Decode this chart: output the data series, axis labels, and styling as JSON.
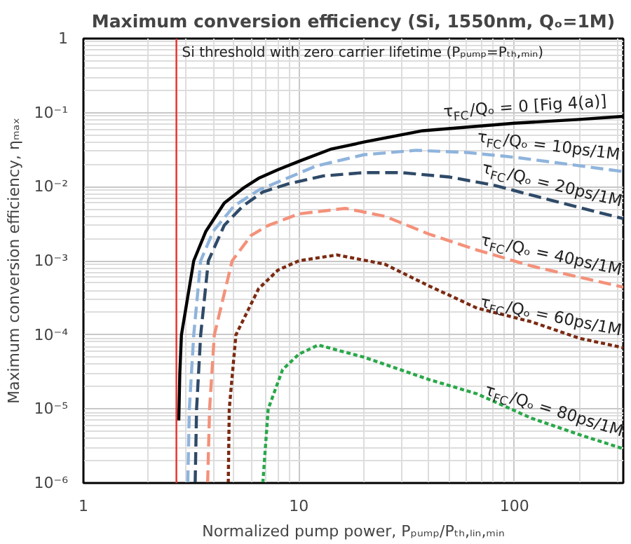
{
  "chart_data": {
    "type": "line",
    "title": "Maximum conversion efficiency (Si, 1550nm, Qₒ=1M)",
    "xlabel": "Normalized pump power, Pₚᵤₘₚ/Pₜₕ,ₗᵢₙ,ₘᵢₙ",
    "ylabel": "Maximum conversion efficiency, ηₘₐₓ",
    "log": "xy",
    "grid": true,
    "legend": false,
    "xlim": [
      1,
      320
    ],
    "xticks": [
      1,
      10,
      100
    ],
    "ylim": [
      1e-06,
      1
    ],
    "yticks": [
      {
        "value": 1e-06,
        "label": "10⁻⁶"
      },
      {
        "value": 1e-05,
        "label": "10⁻⁵"
      },
      {
        "value": 0.0001,
        "label": "10⁻⁴"
      },
      {
        "value": 0.001,
        "label": "10⁻³"
      },
      {
        "value": 0.01,
        "label": "10⁻²"
      },
      {
        "value": 0.1,
        "label": "10⁻¹"
      },
      1
    ],
    "ref_lines": [
      {
        "axis": "x",
        "value": 2.7,
        "label": "Si threshold with zero carrier lifetime (Pₚᵤₘₚ=Pₜₕ,ₘᵢₙ)",
        "color": "#e8302a"
      }
    ],
    "series": [
      {
        "name": "τ$_{FC}$/Qₒ = 0 [Fig 4(a)]",
        "color": "#000000",
        "line_style": "solid",
        "x": [
          2.77,
          2.8,
          2.85,
          3.25,
          3.7,
          4.5,
          5.5,
          6.5,
          8,
          10,
          14,
          20,
          37.6,
          100,
          200,
          320
        ],
        "values": [
          7e-06,
          3e-05,
          0.0001,
          0.001,
          0.0025,
          0.006,
          0.0095,
          0.013,
          0.017,
          0.022,
          0.032,
          0.04,
          0.057,
          0.072,
          0.081,
          0.089
        ]
      },
      {
        "name": "τ$_{FC}$/Qₒ = 10ps/1M",
        "color": "#8fb4dc",
        "line_style": "dashed",
        "x": [
          3.05,
          3.1,
          3.25,
          3.5,
          4,
          5,
          6.5,
          8.8,
          12,
          20,
          35,
          60,
          100,
          180,
          320
        ],
        "values": [
          1e-06,
          1e-05,
          0.0001,
          0.001,
          0.0025,
          0.0055,
          0.009,
          0.013,
          0.019,
          0.027,
          0.031,
          0.029,
          0.025,
          0.02,
          0.016
        ]
      },
      {
        "name": "τ$_{FC}$/Qₒ = 20ps/1M",
        "color": "#2f4a68",
        "line_style": "dashed",
        "x": [
          3.3,
          3.35,
          3.5,
          3.8,
          4.5,
          5.5,
          6.8,
          9,
          13,
          20,
          30,
          50,
          80,
          150,
          320
        ],
        "values": [
          1e-06,
          1e-05,
          0.0001,
          0.001,
          0.003,
          0.0055,
          0.0085,
          0.011,
          0.014,
          0.0155,
          0.0155,
          0.0135,
          0.0105,
          0.0065,
          0.0037
        ]
      },
      {
        "name": "τ$_{FC}$/Qₒ = 40ps/1M",
        "color": "#f4917a",
        "line_style": "dashed",
        "x": [
          3.77,
          3.85,
          4.05,
          4.9,
          6,
          7.2,
          10,
          16.4,
          25,
          40,
          67,
          120,
          200,
          320
        ],
        "values": [
          1e-06,
          1e-05,
          0.0001,
          0.001,
          0.0022,
          0.003,
          0.0043,
          0.0051,
          0.004,
          0.0023,
          0.0014,
          0.00085,
          0.0006,
          0.00044
        ]
      },
      {
        "name": "τ$_{FC}$/Qₒ = 60ps/1M",
        "color": "#7b2a12",
        "line_style": "dotted",
        "x": [
          4.7,
          4.75,
          5.1,
          6.5,
          8,
          10,
          15,
          25,
          40,
          67,
          120,
          200,
          320
        ],
        "values": [
          1e-06,
          1e-05,
          0.0001,
          0.00042,
          0.00075,
          0.001,
          0.0012,
          0.0009,
          0.00046,
          0.00023,
          0.00015,
          9e-05,
          6.7e-05
        ]
      },
      {
        "name": "τ$_{FC}$/Qₒ = 80ps/1M",
        "color": "#2aa84a",
        "line_style": "dotted",
        "x": [
          6.8,
          7.2,
          8.4,
          10,
          12.3,
          20,
          40,
          67,
          120,
          200,
          320
        ],
        "values": [
          1e-06,
          1e-05,
          3.4e-05,
          5.5e-05,
          7.3e-05,
          5e-05,
          2.5e-05,
          1.6e-05,
          7.5e-06,
          4.5e-06,
          2.9e-06
        ]
      }
    ]
  }
}
